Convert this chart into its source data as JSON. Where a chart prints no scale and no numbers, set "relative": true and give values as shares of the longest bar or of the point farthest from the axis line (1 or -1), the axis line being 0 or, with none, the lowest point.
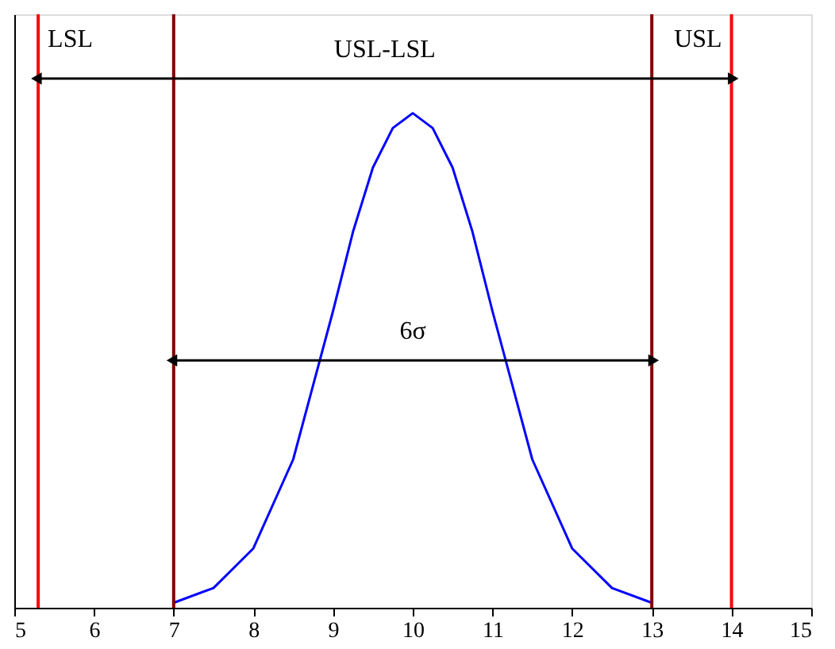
{
  "chart_data": {
    "type": "line",
    "relative": true,
    "x": [
      7,
      7.5,
      8,
      8.5,
      9,
      9.25,
      9.5,
      9.75,
      10,
      10.25,
      10.5,
      10.75,
      11,
      11.5,
      12,
      12.5,
      13
    ],
    "series": [
      {
        "color": "#0000ff",
        "values": [
          0.01,
          0.04,
          0.12,
          0.3,
          0.6,
          0.76,
          0.89,
          0.97,
          1,
          0.97,
          0.89,
          0.76,
          0.6,
          0.3,
          0.12,
          0.04,
          0.01
        ]
      }
    ],
    "xlim": [
      5,
      15
    ],
    "xticks": [
      5,
      6,
      7,
      8,
      9,
      10,
      11,
      12,
      13,
      14,
      15
    ],
    "ref_lines": [
      {
        "axis": "x",
        "value": 5.3,
        "label": "LSL",
        "color": "#ff0000"
      },
      {
        "axis": "x",
        "value": 14,
        "label": "USL",
        "color": "#ff0000"
      },
      {
        "axis": "x",
        "value": 7,
        "label": null,
        "color": "#800000"
      },
      {
        "axis": "x",
        "value": 13,
        "label": null,
        "color": "#800000"
      }
    ],
    "annotations": [
      "USL-LSL",
      "6σ"
    ],
    "grid": false,
    "line_style": "solid",
    "marker": "none"
  }
}
